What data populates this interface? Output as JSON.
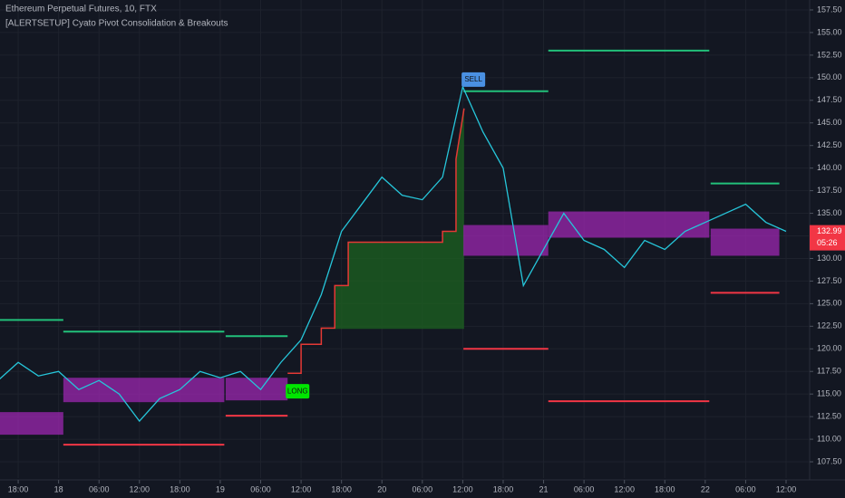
{
  "chart_data": {
    "type": "line",
    "title": "Ethereum Perpetual Futures, 10, FTX",
    "subtitle": "[ALERTSETUP] Cyato Pivot Consolidation & Breakouts",
    "x": [
      -3,
      0,
      3,
      6,
      9,
      12,
      15,
      18,
      21,
      24,
      27,
      30,
      33,
      36,
      39,
      42,
      45,
      48,
      51,
      54,
      57,
      60,
      63,
      66,
      69,
      72,
      75,
      78,
      81,
      84,
      87,
      90,
      93,
      96,
      99,
      102,
      105,
      108,
      111,
      114
    ],
    "series": [
      {
        "color": "#26c6da",
        "values": [
          116.5,
          118.5,
          117,
          117.5,
          115.5,
          116.5,
          115,
          112,
          114.5,
          115.5,
          117.5,
          116.8,
          117.5,
          115.5,
          118.5,
          121,
          126,
          133,
          136,
          139,
          137,
          136.5,
          139,
          149,
          144,
          140,
          127,
          131,
          135,
          132,
          131,
          129,
          132,
          131,
          133,
          134,
          135,
          136,
          134,
          133
        ]
      }
    ],
    "xlim": [
      -2.7,
      117.5
    ],
    "ylim": [
      105.7,
      158.6
    ],
    "xticks": [
      {
        "value": 0,
        "label": "18:00"
      },
      {
        "value": 6,
        "label": "18"
      },
      {
        "value": 12,
        "label": "06:00"
      },
      {
        "value": 18,
        "label": "12:00"
      },
      {
        "value": 24,
        "label": "18:00"
      },
      {
        "value": 30,
        "label": "19"
      },
      {
        "value": 36,
        "label": "06:00"
      },
      {
        "value": 42,
        "label": "12:00"
      },
      {
        "value": 48,
        "label": "18:00"
      },
      {
        "value": 54,
        "label": "20"
      },
      {
        "value": 60,
        "label": "06:00"
      },
      {
        "value": 66,
        "label": "12:00"
      },
      {
        "value": 72,
        "label": "18:00"
      },
      {
        "value": 78,
        "label": "21"
      },
      {
        "value": 84,
        "label": "06:00"
      },
      {
        "value": 90,
        "label": "12:00"
      },
      {
        "value": 96,
        "label": "18:00"
      },
      {
        "value": 102,
        "label": "22"
      },
      {
        "value": 108,
        "label": "06:00"
      },
      {
        "value": 114,
        "label": "12:00"
      }
    ],
    "yticks": [
      {
        "value": 107.5,
        "label": "107.50"
      },
      {
        "value": 110,
        "label": "110.00"
      },
      {
        "value": 112.5,
        "label": "112.50"
      },
      {
        "value": 115,
        "label": "115.00"
      },
      {
        "value": 117.5,
        "label": "117.50"
      },
      {
        "value": 120,
        "label": "120.00"
      },
      {
        "value": 122.5,
        "label": "122.50"
      },
      {
        "value": 125,
        "label": "125.00"
      },
      {
        "value": 127.5,
        "label": "127.50"
      },
      {
        "value": 130,
        "label": "130.00"
      },
      {
        "value": 132.5,
        "label": "132.50"
      },
      {
        "value": 135,
        "label": "135.00"
      },
      {
        "value": 137.5,
        "label": "137.50"
      },
      {
        "value": 140,
        "label": "140.00"
      },
      {
        "value": 142.5,
        "label": "142.50"
      },
      {
        "value": 145,
        "label": "145.00"
      },
      {
        "value": 147.5,
        "label": "147.50"
      },
      {
        "value": 150,
        "label": "150.00"
      },
      {
        "value": 152.5,
        "label": "152.50"
      },
      {
        "value": 155,
        "label": "155.00"
      },
      {
        "value": 157.5,
        "label": "157.50"
      }
    ],
    "grid": true,
    "zone_color": "#9c27b0",
    "zones": [
      {
        "x": [
          -2.7,
          6.7
        ],
        "y": [
          110.5,
          113.0
        ]
      },
      {
        "x": [
          6.7,
          30.6
        ],
        "y": [
          114.1,
          116.8
        ]
      },
      {
        "x": [
          30.8,
          40
        ],
        "y": [
          114.3,
          116.8
        ]
      },
      {
        "x": [
          66.1,
          78.7
        ],
        "y": [
          130.3,
          133.7
        ]
      },
      {
        "x": [
          78.7,
          102.6
        ],
        "y": [
          132.3,
          135.2
        ]
      },
      {
        "x": [
          102.8,
          113
        ],
        "y": [
          130.3,
          133.3
        ]
      }
    ],
    "resistance_color": "#22c07a",
    "resistance": [
      {
        "x": [
          -2.7,
          6.7
        ],
        "value": 123.2
      },
      {
        "x": [
          6.7,
          30.6
        ],
        "value": 121.9
      },
      {
        "x": [
          30.8,
          40
        ],
        "value": 121.4
      },
      {
        "x": [
          66.1,
          78.7
        ],
        "value": 148.5
      },
      {
        "x": [
          78.7,
          102.6
        ],
        "value": 153.0
      },
      {
        "x": [
          102.8,
          113
        ],
        "value": 138.3
      }
    ],
    "support_color": "#f23645",
    "support": [
      {
        "x": [
          6.7,
          30.6
        ],
        "value": 109.4
      },
      {
        "x": [
          30.8,
          40
        ],
        "value": 112.6
      },
      {
        "x": [
          66.1,
          78.7
        ],
        "value": 120.0
      },
      {
        "x": [
          78.7,
          102.6
        ],
        "value": 114.2
      },
      {
        "x": [
          102.8,
          113
        ],
        "value": 126.2
      }
    ],
    "stop": {
      "color": "#e53935",
      "fill": "#1b5e20",
      "base": 122.2,
      "x": [
        40,
        42,
        42,
        45,
        45,
        47,
        47,
        49,
        49,
        63,
        63,
        65,
        65,
        66.2
      ],
      "values": [
        117.3,
        117.3,
        120.5,
        120.5,
        122.3,
        122.3,
        127,
        127,
        131.8,
        131.8,
        133,
        133,
        141,
        146.6
      ]
    },
    "signals": [
      {
        "text": "LONG",
        "x": 40,
        "value": 115.3,
        "color": "#00e600"
      },
      {
        "text": "SELL",
        "x": 66.1,
        "value": 149.8,
        "color": "#4a90e2"
      }
    ],
    "last_price": 132.99,
    "countdown": "05:26"
  }
}
